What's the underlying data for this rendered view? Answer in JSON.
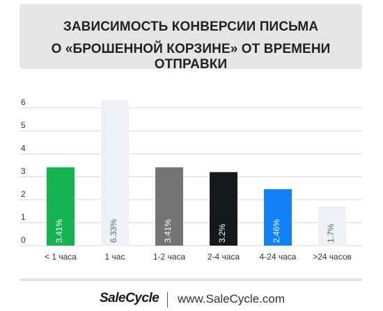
{
  "title": {
    "line1": "ЗАВИСИМОСТЬ КОНВЕРСИИ ПИСЬМА",
    "line2": "О «БРОШЕННОЙ КОРЗИНЕ» ОТ ВРЕМЕНИ ОТПРАВКИ"
  },
  "footer": {
    "brand": "SaleCycle",
    "url": "www.SaleCycle.com"
  },
  "chart_data": {
    "type": "bar",
    "categories": [
      "< 1 часа",
      "1 час",
      "1-2 часа",
      "2-4 часа",
      "4-24 часа",
      ">24 часов"
    ],
    "values": [
      3.41,
      6.33,
      3.41,
      3.2,
      2.46,
      1.7
    ],
    "data_labels": [
      "3.41%",
      "6.33%",
      "3.41%",
      "3.2%",
      "2.46%",
      "1.7%"
    ],
    "colors": [
      "#14b451",
      "#eef2f6",
      "#737373",
      "#141a1c",
      "#1182f5",
      "#eef2f6"
    ],
    "label_colors": [
      "#ffffff",
      "#666666",
      "#ffffff",
      "#ffffff",
      "#ffffff",
      "#666666"
    ],
    "y_ticks": [
      "0",
      "1",
      "2",
      "3",
      "4",
      "5",
      "6"
    ],
    "ylim": [
      0,
      6.5
    ],
    "grid": true,
    "title": "",
    "xlabel": "",
    "ylabel": ""
  }
}
